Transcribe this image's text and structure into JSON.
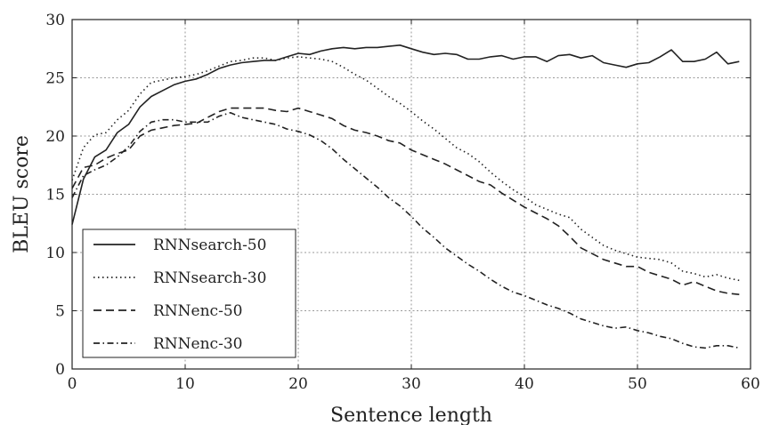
{
  "chart_data": {
    "type": "line",
    "xlabel": "Sentence length",
    "ylabel": "BLEU score",
    "xlim": [
      0,
      60
    ],
    "ylim": [
      0,
      30
    ],
    "xticks": [
      0,
      10,
      20,
      30,
      40,
      50,
      60
    ],
    "yticks": [
      0,
      5,
      10,
      15,
      20,
      25,
      30
    ],
    "grid": true,
    "legend_position": "lower-left",
    "series": [
      {
        "name": "RNNsearch-50",
        "style": "solid",
        "color": "#222222",
        "x": [
          0,
          1,
          2,
          3,
          4,
          5,
          6,
          7,
          8,
          9,
          10,
          11,
          12,
          13,
          14,
          15,
          16,
          17,
          18,
          19,
          20,
          21,
          22,
          23,
          24,
          25,
          26,
          27,
          28,
          29,
          30,
          31,
          32,
          33,
          34,
          35,
          36,
          37,
          38,
          39,
          40,
          41,
          42,
          43,
          44,
          45,
          46,
          47,
          48,
          49,
          50,
          51,
          52,
          53,
          54,
          55,
          56,
          57,
          58,
          59
        ],
        "y": [
          12.4,
          16.3,
          18.2,
          18.8,
          20.3,
          21.0,
          22.5,
          23.4,
          23.9,
          24.4,
          24.7,
          24.9,
          25.3,
          25.8,
          26.1,
          26.3,
          26.4,
          26.5,
          26.5,
          26.8,
          27.1,
          27.0,
          27.3,
          27.5,
          27.6,
          27.5,
          27.6,
          27.6,
          27.7,
          27.8,
          27.5,
          27.2,
          27.0,
          27.1,
          27.0,
          26.6,
          26.6,
          26.8,
          26.9,
          26.6,
          26.8,
          26.8,
          26.4,
          26.9,
          27.0,
          26.7,
          26.9,
          26.3,
          26.1,
          25.9,
          26.2,
          26.3,
          26.8,
          27.4,
          26.4,
          26.4,
          26.6,
          27.2,
          26.2,
          26.4
        ]
      },
      {
        "name": "RNNsearch-30",
        "style": "dotted",
        "color": "#222222",
        "x": [
          0,
          1,
          2,
          3,
          4,
          5,
          6,
          7,
          8,
          9,
          10,
          11,
          12,
          13,
          14,
          15,
          16,
          17,
          18,
          19,
          20,
          21,
          22,
          23,
          24,
          25,
          26,
          27,
          28,
          29,
          30,
          31,
          32,
          33,
          34,
          35,
          36,
          37,
          38,
          39,
          40,
          41,
          42,
          43,
          44,
          45,
          46,
          47,
          48,
          49,
          50,
          51,
          52,
          53,
          54,
          55,
          56,
          57,
          58,
          59
        ],
        "y": [
          16.2,
          19.0,
          20.1,
          20.3,
          21.4,
          22.2,
          23.6,
          24.6,
          24.8,
          25.0,
          25.1,
          25.3,
          25.6,
          26.0,
          26.4,
          26.5,
          26.7,
          26.7,
          26.5,
          26.7,
          26.8,
          26.7,
          26.6,
          26.4,
          25.9,
          25.3,
          24.8,
          24.1,
          23.4,
          22.8,
          22.1,
          21.3,
          20.6,
          19.8,
          19.0,
          18.5,
          17.8,
          16.9,
          16.1,
          15.4,
          14.8,
          14.1,
          13.7,
          13.3,
          13.0,
          12.0,
          11.3,
          10.6,
          10.2,
          9.9,
          9.6,
          9.5,
          9.4,
          9.1,
          8.4,
          8.2,
          7.9,
          8.1,
          7.8,
          7.6
        ]
      },
      {
        "name": "RNNenc-50",
        "style": "dashed",
        "color": "#222222",
        "x": [
          0,
          1,
          2,
          3,
          4,
          5,
          6,
          7,
          8,
          9,
          10,
          11,
          12,
          13,
          14,
          15,
          16,
          17,
          18,
          19,
          20,
          21,
          22,
          23,
          24,
          25,
          26,
          27,
          28,
          29,
          30,
          31,
          32,
          33,
          34,
          35,
          36,
          37,
          38,
          39,
          40,
          41,
          42,
          43,
          44,
          45,
          46,
          47,
          48,
          49,
          50,
          51,
          52,
          53,
          54,
          55,
          56,
          57,
          58,
          59
        ],
        "y": [
          15.5,
          17.3,
          17.5,
          18.1,
          18.5,
          18.8,
          20.0,
          20.5,
          20.7,
          20.9,
          21.0,
          21.1,
          21.6,
          22.1,
          22.4,
          22.4,
          22.4,
          22.4,
          22.2,
          22.1,
          22.4,
          22.1,
          21.8,
          21.5,
          20.9,
          20.5,
          20.3,
          20.0,
          19.6,
          19.4,
          18.8,
          18.4,
          18.0,
          17.6,
          17.1,
          16.6,
          16.1,
          15.8,
          15.1,
          14.5,
          13.9,
          13.4,
          12.9,
          12.3,
          11.4,
          10.4,
          9.9,
          9.4,
          9.1,
          8.8,
          8.8,
          8.3,
          8.0,
          7.7,
          7.2,
          7.5,
          7.1,
          6.7,
          6.5,
          6.4
        ]
      },
      {
        "name": "RNNenc-30",
        "style": "dashdot",
        "color": "#222222",
        "x": [
          0,
          1,
          2,
          3,
          4,
          5,
          6,
          7,
          8,
          9,
          10,
          11,
          12,
          13,
          14,
          15,
          16,
          17,
          18,
          19,
          20,
          21,
          22,
          23,
          24,
          25,
          26,
          27,
          28,
          29,
          30,
          31,
          32,
          33,
          34,
          35,
          36,
          37,
          38,
          39,
          40,
          41,
          42,
          43,
          44,
          45,
          46,
          47,
          48,
          49,
          50,
          51,
          52,
          53,
          54,
          55,
          56,
          57,
          58,
          59
        ],
        "y": [
          14.7,
          16.6,
          17.1,
          17.5,
          18.2,
          19.1,
          20.4,
          21.2,
          21.4,
          21.4,
          21.2,
          21.2,
          21.2,
          21.7,
          22.0,
          21.6,
          21.4,
          21.2,
          21.0,
          20.6,
          20.4,
          20.1,
          19.6,
          18.9,
          18.0,
          17.2,
          16.4,
          15.6,
          14.7,
          14.0,
          13.1,
          12.1,
          11.3,
          10.4,
          9.7,
          9.0,
          8.4,
          7.7,
          7.1,
          6.6,
          6.3,
          5.9,
          5.5,
          5.2,
          4.8,
          4.3,
          4.0,
          3.7,
          3.5,
          3.6,
          3.3,
          3.1,
          2.8,
          2.6,
          2.2,
          1.9,
          1.8,
          2.0,
          2.0,
          1.8
        ]
      }
    ]
  }
}
